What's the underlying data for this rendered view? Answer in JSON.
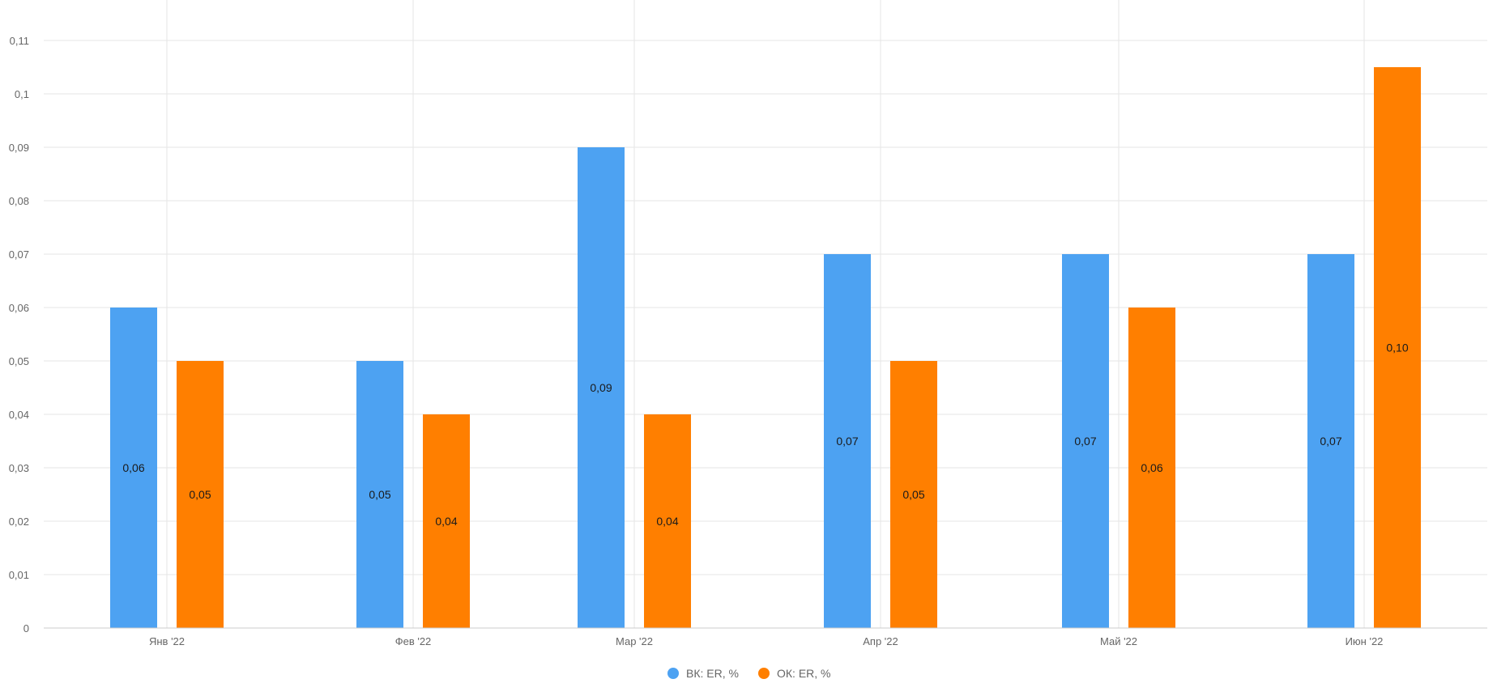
{
  "chart_data": {
    "type": "bar",
    "categories": [
      "Янв '22",
      "Фев '22",
      "Мар '22",
      "Апр '22",
      "Май '22",
      "Июн '22"
    ],
    "series": [
      {
        "name": "ВК: ER, %",
        "color": "#4da2f2",
        "values": [
          0.06,
          0.05,
          0.09,
          0.07,
          0.07,
          0.07
        ],
        "labels": [
          "0,06",
          "0,05",
          "0,09",
          "0,07",
          "0,07",
          "0,07"
        ]
      },
      {
        "name": "ОК: ER, %",
        "color": "#ff7f00",
        "values": [
          0.05,
          0.04,
          0.04,
          0.05,
          0.06,
          0.105
        ],
        "labels": [
          "0,05",
          "0,04",
          "0,04",
          "0,05",
          "0,06",
          "0,10"
        ]
      }
    ],
    "y_ticks": [
      0,
      0.01,
      0.02,
      0.03,
      0.04,
      0.05,
      0.06,
      0.07,
      0.08,
      0.09,
      0.1,
      0.11
    ],
    "y_tick_labels": [
      "0",
      "0,01",
      "0,02",
      "0,03",
      "0,04",
      "0,05",
      "0,06",
      "0,07",
      "0,08",
      "0,09",
      "0,1",
      "0,11"
    ],
    "ylim": [
      0,
      0.11
    ],
    "grid": true,
    "legend": "bottom-center",
    "title": "",
    "xlabel": "",
    "ylabel": ""
  }
}
